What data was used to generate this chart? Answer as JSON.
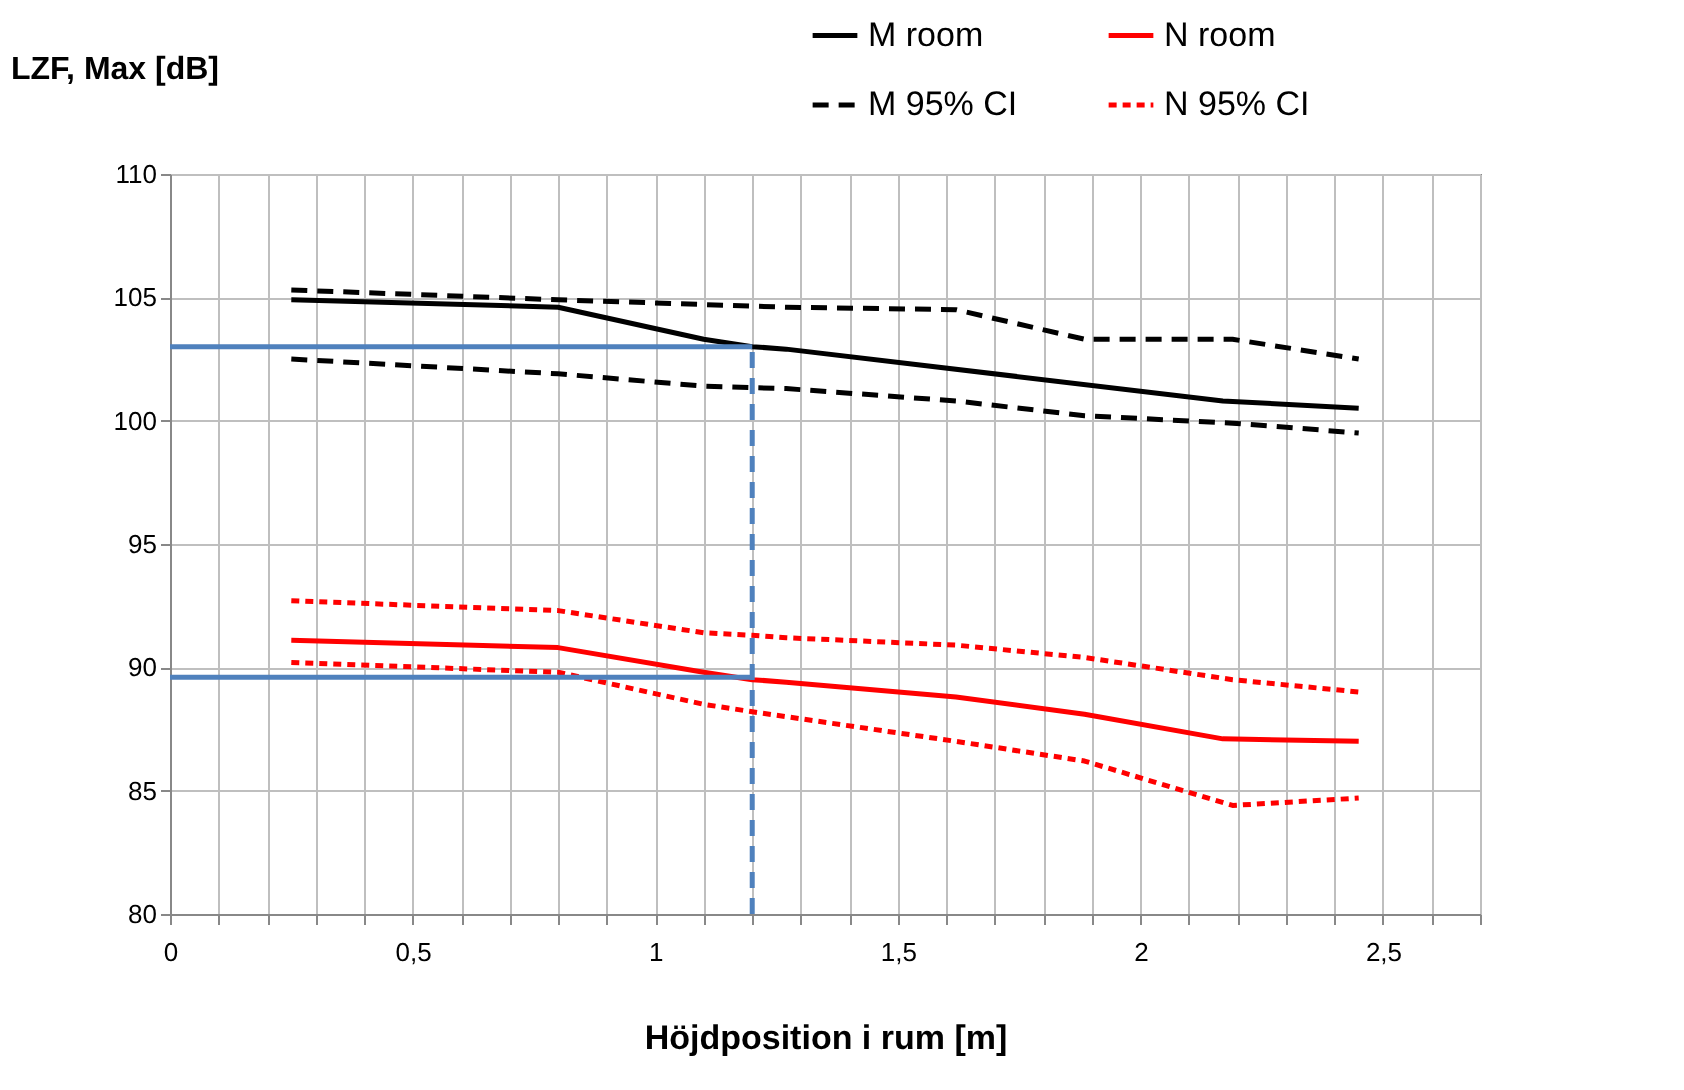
{
  "chart_data": {
    "type": "line",
    "xlabel": "Höjdposition i rum [m]",
    "ylabel": "LZF, Max [dB]",
    "xlim": [
      0,
      2.7
    ],
    "ylim": [
      80,
      110
    ],
    "xticks": [
      0,
      {
        "value": 0.1,
        "label": null
      },
      {
        "value": 0.2,
        "label": null
      },
      {
        "value": 0.3,
        "label": null
      },
      {
        "value": 0.4,
        "label": null
      },
      {
        "value": 0.5,
        "label": "0,5"
      },
      {
        "value": 0.6,
        "label": null
      },
      {
        "value": 0.7,
        "label": null
      },
      {
        "value": 0.8,
        "label": null
      },
      {
        "value": 0.9,
        "label": null
      },
      1,
      {
        "value": 1.1,
        "label": null
      },
      {
        "value": 1.2,
        "label": null
      },
      {
        "value": 1.3,
        "label": null
      },
      {
        "value": 1.4,
        "label": null
      },
      {
        "value": 1.5,
        "label": "1,5"
      },
      {
        "value": 1.6,
        "label": null
      },
      {
        "value": 1.7,
        "label": null
      },
      {
        "value": 1.8,
        "label": null
      },
      {
        "value": 1.9,
        "label": null
      },
      2,
      {
        "value": 2.1,
        "label": null
      },
      {
        "value": 2.2,
        "label": null
      },
      {
        "value": 2.3,
        "label": null
      },
      {
        "value": 2.4,
        "label": null
      },
      {
        "value": 2.5,
        "label": "2,5"
      },
      {
        "value": 2.6,
        "label": null
      },
      {
        "value": 2.7,
        "label": null
      }
    ],
    "yticks": [
      80,
      85,
      90,
      95,
      100,
      105,
      110
    ],
    "grid": true,
    "legend": "top",
    "series": [
      {
        "name": "M room",
        "color": "#000000",
        "line_style": "solid",
        "x": [
          0.25,
          0.8,
          1.1,
          1.2,
          1.27,
          2.17,
          2.45
        ],
        "values": [
          104.9,
          104.6,
          103.3,
          103.0,
          102.9,
          100.8,
          100.5
        ]
      },
      {
        "name": "M 95% CI",
        "color": "#000000",
        "line_style": "dashed",
        "x": [
          0.25,
          0.8,
          1.27,
          1.62,
          1.885,
          2.19,
          2.45
        ],
        "values": [
          105.3,
          104.9,
          104.6,
          104.5,
          103.3,
          103.3,
          102.5
        ]
      },
      {
        "name": "N room",
        "color": "#ff0000",
        "line_style": "solid",
        "x": [
          0.25,
          0.8,
          1.1,
          1.2,
          1.27,
          1.62,
          1.885,
          2.17,
          2.45
        ],
        "values": [
          91.1,
          90.8,
          89.8,
          89.5,
          89.4,
          88.8,
          88.1,
          87.1,
          87.0
        ]
      },
      {
        "name": "N 95% CI",
        "color": "#ff0000",
        "line_style": "dotted",
        "x": [
          0.25,
          0.8,
          1.1,
          1.2,
          1.27,
          1.62,
          1.885,
          2.19,
          2.45
        ],
        "values": [
          92.7,
          92.3,
          91.4,
          91.3,
          91.2,
          90.9,
          90.4,
          89.5,
          89.0
        ]
      },
      {
        "color": "#000000",
        "line_style": "dashed",
        "x": [
          0.25,
          0.8,
          1.1,
          1.27,
          1.62,
          1.885,
          2.19,
          2.45
        ],
        "values": [
          102.5,
          101.9,
          101.4,
          101.3,
          100.8,
          100.2,
          99.9,
          99.5
        ]
      },
      {
        "color": "#ff0000",
        "line_style": "dotted",
        "x": [
          0.25,
          0.8,
          1.1,
          1.2,
          1.27,
          1.62,
          1.885,
          2.19,
          2.45
        ],
        "values": [
          90.2,
          89.8,
          88.5,
          88.2,
          88.0,
          87.0,
          86.2,
          84.4,
          84.7
        ]
      },
      {
        "color": "#4f81bd",
        "line_style": "solid",
        "x": [
          0,
          1.2
        ],
        "values": [
          103,
          103
        ]
      },
      {
        "color": "#4f81bd",
        "line_style": "solid",
        "x": [
          0,
          1.2
        ],
        "values": [
          89.6,
          89.6
        ]
      },
      {
        "color": "#4f81bd",
        "line_style": "dashed",
        "x": [
          1.2,
          1.2
        ],
        "values": [
          80,
          103
        ]
      }
    ]
  }
}
